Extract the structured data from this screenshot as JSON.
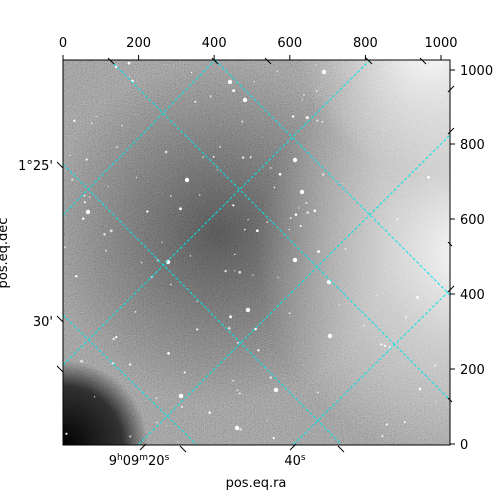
{
  "figure": {
    "top_axis_ticks": [
      0,
      200,
      400,
      600,
      800,
      1000
    ],
    "right_axis_ticks": [
      0,
      200,
      400,
      600,
      800,
      1000
    ],
    "left_axis": {
      "label": "pos.eq.dec",
      "ticks": [
        {
          "text": "1°25'",
          "value": "1°25'"
        },
        {
          "text": "30'",
          "value": "30'"
        }
      ]
    },
    "bottom_axis": {
      "label": "pos.eq.ra",
      "ticks": [
        {
          "base": "9",
          "h": "h",
          "mid": "09",
          "m": "m",
          "tail": "20",
          "s": "s"
        },
        {
          "base": "40",
          "s": "s"
        }
      ]
    },
    "grid_color": "#00e5e5",
    "frame_color": "#000000"
  }
}
